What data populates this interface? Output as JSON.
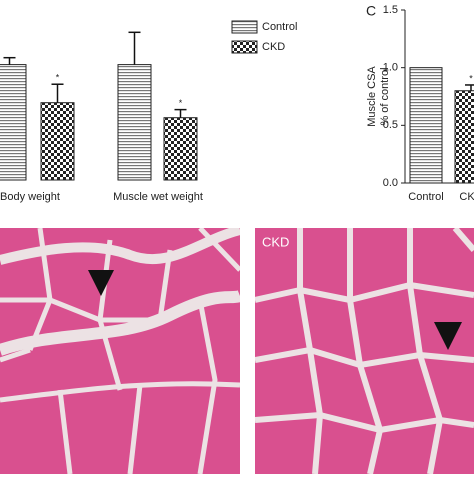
{
  "chart_data": [
    {
      "type": "bar",
      "categories": [
        "Body weight",
        "Muscle wet weight"
      ],
      "series": [
        {
          "name": "Control",
          "color": "#777777",
          "values": [
            1.0,
            1.0
          ],
          "errors": [
            0.06,
            0.28
          ]
        },
        {
          "name": "CKD",
          "color": "#222222",
          "values": [
            0.67,
            0.54
          ],
          "errors": [
            0.16,
            0.07
          ],
          "significance": [
            "*",
            "*"
          ]
        }
      ],
      "ylim": [
        0,
        1.3
      ]
    },
    {
      "type": "bar",
      "panel": "C",
      "ylabel": [
        "Muscle CSA",
        "% of control"
      ],
      "categories": [
        "Control",
        "CKD"
      ],
      "series": [
        {
          "name": "Muscle CSA",
          "colors": [
            "#777777",
            "#222222"
          ],
          "values": [
            1.0,
            0.8
          ],
          "errors": [
            0,
            0.05
          ],
          "significance": [
            null,
            "*"
          ]
        }
      ],
      "ylim": [
        0,
        1.5
      ],
      "yticks": [
        {
          "value": 0,
          "label": "0.0"
        },
        0.5,
        {
          "value": 1,
          "label": "1.0"
        },
        1.5
      ]
    }
  ],
  "micrographs": {
    "labels": [
      "CKD"
    ]
  }
}
